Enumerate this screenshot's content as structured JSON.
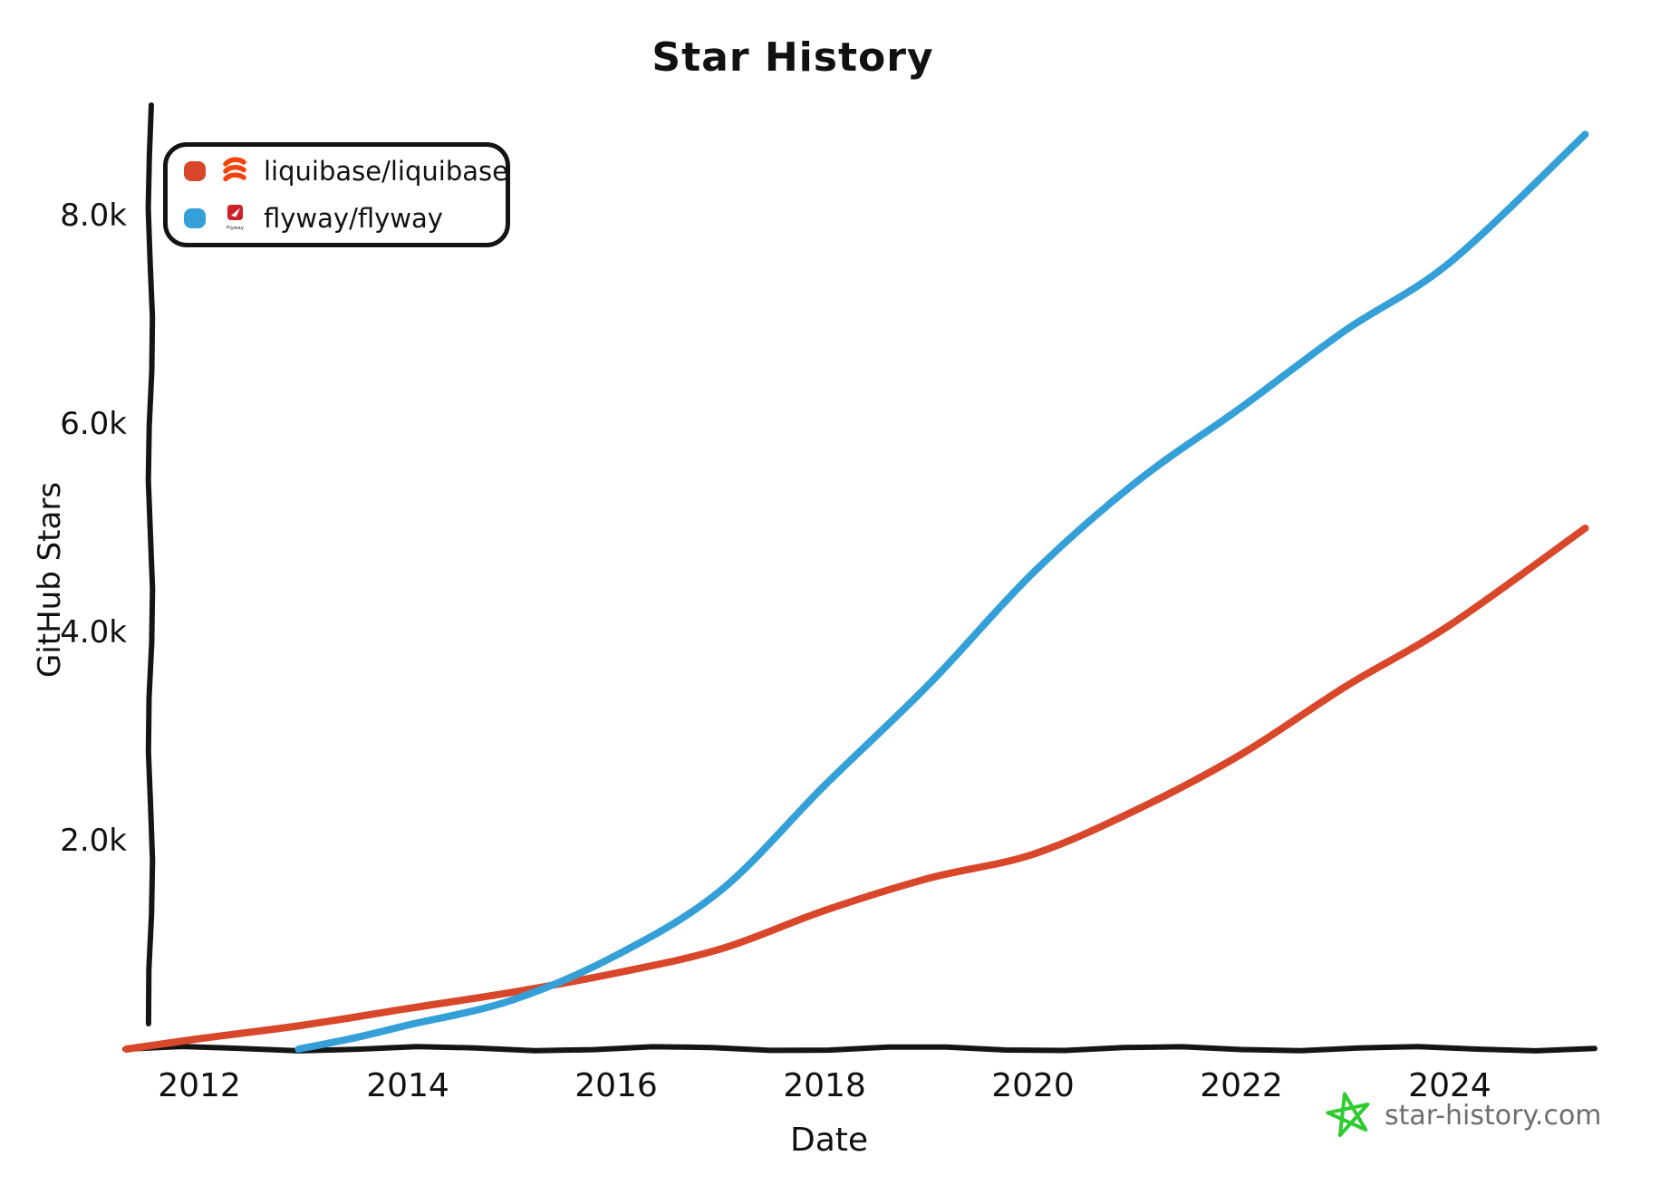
{
  "title": "Star History",
  "legend": {
    "flyway_logo_text": "Flyway"
  },
  "footer": {
    "site": "star-history.com",
    "star_color": "#2fcb2f",
    "text_color": "#6e6e6e"
  },
  "colors": {
    "liquibase_line": "#d9472b",
    "flyway_line": "#35a0d8",
    "axis": "#151515",
    "liquibase_logo": "#f2420d",
    "flyway_logo": "#cc2128"
  },
  "chart_data": {
    "type": "line",
    "title": "Star History",
    "xlabel": "Date",
    "ylabel": "GitHub Stars",
    "grid": false,
    "legend_position": "top-left",
    "xlim": [
      2011.2,
      2025.7
    ],
    "ylim": [
      0,
      9000
    ],
    "x_ticks": [
      {
        "value": 2012,
        "label": "2012"
      },
      {
        "value": 2014,
        "label": "2014"
      },
      {
        "value": 2016,
        "label": "2016"
      },
      {
        "value": 2018,
        "label": "2018"
      },
      {
        "value": 2020,
        "label": "2020"
      },
      {
        "value": 2022,
        "label": "2022"
      },
      {
        "value": 2024,
        "label": "2024"
      }
    ],
    "y_ticks": [
      {
        "value": 2000,
        "label": "2.0k"
      },
      {
        "value": 4000,
        "label": "4.0k"
      },
      {
        "value": 6000,
        "label": "6.0k"
      },
      {
        "value": 8000,
        "label": "8.0k"
      }
    ],
    "series": [
      {
        "name": "liquibase/liquibase",
        "color": "#d9472b",
        "points": [
          [
            2011.3,
            0
          ],
          [
            2012,
            100
          ],
          [
            2013,
            230
          ],
          [
            2014,
            390
          ],
          [
            2015,
            545
          ],
          [
            2016,
            730
          ],
          [
            2017,
            960
          ],
          [
            2018,
            1330
          ],
          [
            2019,
            1640
          ],
          [
            2020,
            1870
          ],
          [
            2021,
            2300
          ],
          [
            2022,
            2830
          ],
          [
            2023,
            3480
          ],
          [
            2024,
            4070
          ],
          [
            2025.3,
            5000
          ]
        ]
      },
      {
        "name": "flyway/flyway",
        "color": "#35a0d8",
        "points": [
          [
            2012.95,
            0
          ],
          [
            2013.5,
            110
          ],
          [
            2014,
            230
          ],
          [
            2015,
            470
          ],
          [
            2016,
            900
          ],
          [
            2017,
            1520
          ],
          [
            2018,
            2530
          ],
          [
            2019,
            3500
          ],
          [
            2020,
            4570
          ],
          [
            2021,
            5450
          ],
          [
            2022,
            6160
          ],
          [
            2023,
            6900
          ],
          [
            2024,
            7550
          ],
          [
            2025.3,
            8780
          ]
        ]
      }
    ]
  }
}
